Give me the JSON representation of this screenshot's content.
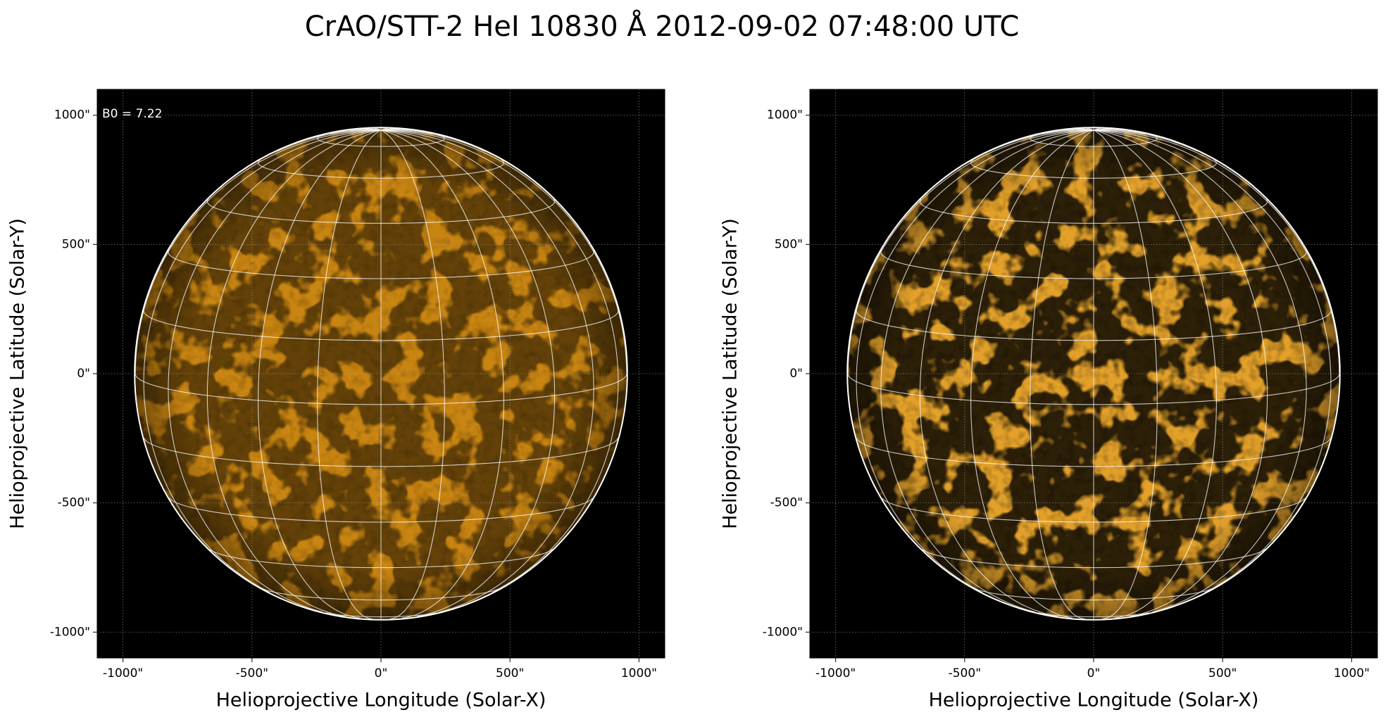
{
  "title": "CrAO/STT-2 HeI 10830 Å 2012-09-02 07:48:00 UTC",
  "chart_data": [
    {
      "type": "solar-map",
      "color": "#c98512",
      "contrast": 1.0,
      "xlabel": "Helioprojective Longitude (Solar-X)",
      "ylabel": "Helioprojective Latitude (Solar-Y)",
      "annotation": "B0 = 7.22",
      "b0": 7.22,
      "disk_radius": 952,
      "grid_spacing_deg": 15,
      "xlim": [
        -1100,
        1100
      ],
      "ylim": [
        -1100,
        1100
      ],
      "xticks": [
        {
          "value": -1000,
          "label": "-1000\""
        },
        {
          "value": -500,
          "label": "-500\""
        },
        {
          "value": 0,
          "label": "0\""
        },
        {
          "value": 500,
          "label": "500\""
        },
        {
          "value": 1000,
          "label": "1000\""
        }
      ],
      "yticks": [
        {
          "value": -1000,
          "label": "-1000\""
        },
        {
          "value": -500,
          "label": "-500\""
        },
        {
          "value": 0,
          "label": "0\""
        },
        {
          "value": 500,
          "label": "500\""
        },
        {
          "value": 1000,
          "label": "1000\""
        }
      ]
    },
    {
      "type": "solar-map",
      "color": "#e3a12a",
      "contrast": 1.6,
      "xlabel": "Helioprojective Longitude (Solar-X)",
      "ylabel": "Helioprojective Latitude (Solar-Y)",
      "b0": 7.22,
      "disk_radius": 952,
      "grid_spacing_deg": 15,
      "xlim": [
        -1100,
        1100
      ],
      "ylim": [
        -1100,
        1100
      ],
      "xticks": [
        {
          "value": -1000,
          "label": "-1000\""
        },
        {
          "value": -500,
          "label": "-500\""
        },
        {
          "value": 0,
          "label": "0\""
        },
        {
          "value": 500,
          "label": "500\""
        },
        {
          "value": 1000,
          "label": "1000\""
        }
      ],
      "yticks": [
        {
          "value": -1000,
          "label": "-1000\""
        },
        {
          "value": -500,
          "label": "-500\""
        },
        {
          "value": 0,
          "label": "0\""
        },
        {
          "value": 500,
          "label": "500\""
        },
        {
          "value": 1000,
          "label": "1000\""
        }
      ]
    }
  ]
}
